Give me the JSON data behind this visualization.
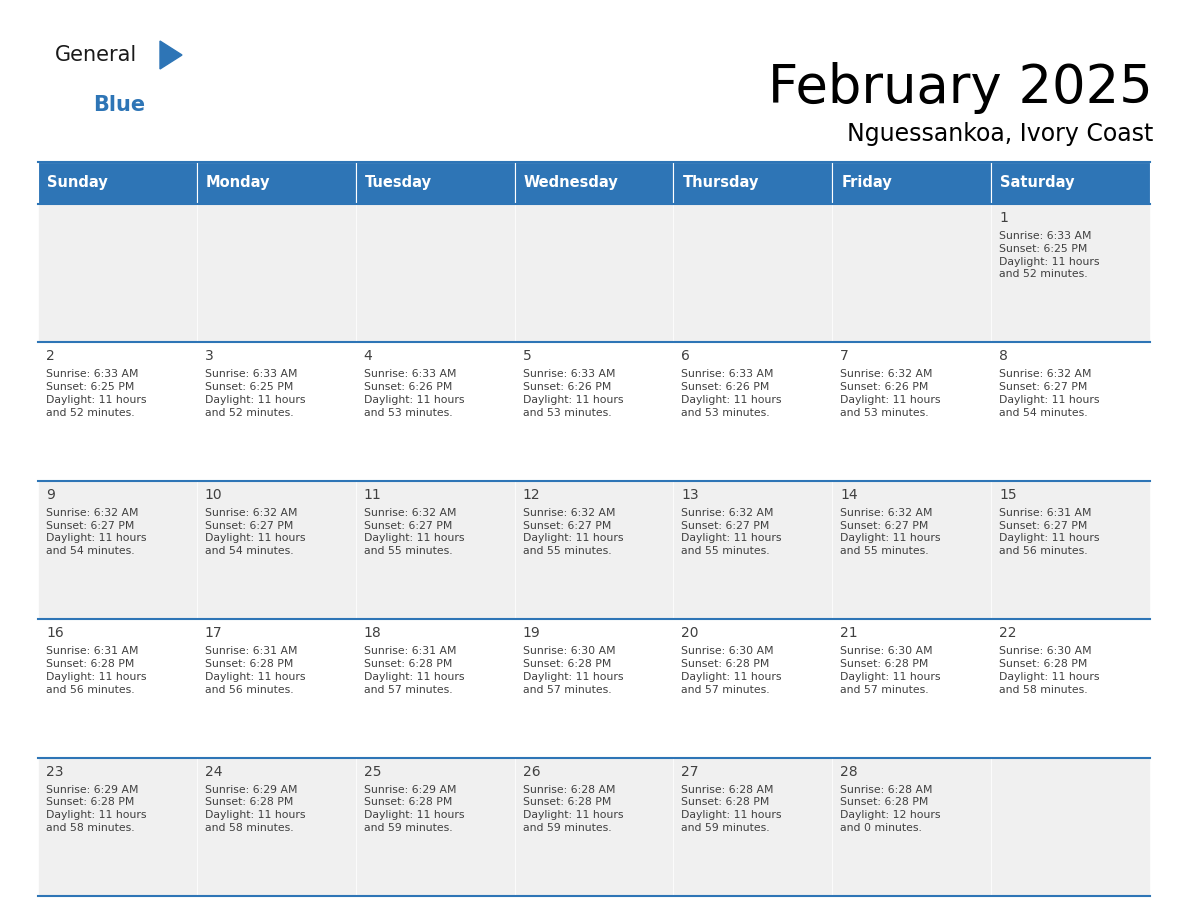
{
  "title": "February 2025",
  "subtitle": "Nguessankoa, Ivory Coast",
  "header_bg": "#2E75B6",
  "header_text_color": "#FFFFFF",
  "cell_bg_odd": "#F0F0F0",
  "cell_bg_even": "#FFFFFF",
  "border_color": "#2E75B6",
  "text_color": "#404040",
  "days_of_week": [
    "Sunday",
    "Monday",
    "Tuesday",
    "Wednesday",
    "Thursday",
    "Friday",
    "Saturday"
  ],
  "calendar": [
    [
      null,
      null,
      null,
      null,
      null,
      null,
      {
        "day": 1,
        "sunrise": "6:33 AM",
        "sunset": "6:25 PM",
        "daylight": "11 hours\nand 52 minutes."
      }
    ],
    [
      {
        "day": 2,
        "sunrise": "6:33 AM",
        "sunset": "6:25 PM",
        "daylight": "11 hours\nand 52 minutes."
      },
      {
        "day": 3,
        "sunrise": "6:33 AM",
        "sunset": "6:25 PM",
        "daylight": "11 hours\nand 52 minutes."
      },
      {
        "day": 4,
        "sunrise": "6:33 AM",
        "sunset": "6:26 PM",
        "daylight": "11 hours\nand 53 minutes."
      },
      {
        "day": 5,
        "sunrise": "6:33 AM",
        "sunset": "6:26 PM",
        "daylight": "11 hours\nand 53 minutes."
      },
      {
        "day": 6,
        "sunrise": "6:33 AM",
        "sunset": "6:26 PM",
        "daylight": "11 hours\nand 53 minutes."
      },
      {
        "day": 7,
        "sunrise": "6:32 AM",
        "sunset": "6:26 PM",
        "daylight": "11 hours\nand 53 minutes."
      },
      {
        "day": 8,
        "sunrise": "6:32 AM",
        "sunset": "6:27 PM",
        "daylight": "11 hours\nand 54 minutes."
      }
    ],
    [
      {
        "day": 9,
        "sunrise": "6:32 AM",
        "sunset": "6:27 PM",
        "daylight": "11 hours\nand 54 minutes."
      },
      {
        "day": 10,
        "sunrise": "6:32 AM",
        "sunset": "6:27 PM",
        "daylight": "11 hours\nand 54 minutes."
      },
      {
        "day": 11,
        "sunrise": "6:32 AM",
        "sunset": "6:27 PM",
        "daylight": "11 hours\nand 55 minutes."
      },
      {
        "day": 12,
        "sunrise": "6:32 AM",
        "sunset": "6:27 PM",
        "daylight": "11 hours\nand 55 minutes."
      },
      {
        "day": 13,
        "sunrise": "6:32 AM",
        "sunset": "6:27 PM",
        "daylight": "11 hours\nand 55 minutes."
      },
      {
        "day": 14,
        "sunrise": "6:32 AM",
        "sunset": "6:27 PM",
        "daylight": "11 hours\nand 55 minutes."
      },
      {
        "day": 15,
        "sunrise": "6:31 AM",
        "sunset": "6:27 PM",
        "daylight": "11 hours\nand 56 minutes."
      }
    ],
    [
      {
        "day": 16,
        "sunrise": "6:31 AM",
        "sunset": "6:28 PM",
        "daylight": "11 hours\nand 56 minutes."
      },
      {
        "day": 17,
        "sunrise": "6:31 AM",
        "sunset": "6:28 PM",
        "daylight": "11 hours\nand 56 minutes."
      },
      {
        "day": 18,
        "sunrise": "6:31 AM",
        "sunset": "6:28 PM",
        "daylight": "11 hours\nand 57 minutes."
      },
      {
        "day": 19,
        "sunrise": "6:30 AM",
        "sunset": "6:28 PM",
        "daylight": "11 hours\nand 57 minutes."
      },
      {
        "day": 20,
        "sunrise": "6:30 AM",
        "sunset": "6:28 PM",
        "daylight": "11 hours\nand 57 minutes."
      },
      {
        "day": 21,
        "sunrise": "6:30 AM",
        "sunset": "6:28 PM",
        "daylight": "11 hours\nand 57 minutes."
      },
      {
        "day": 22,
        "sunrise": "6:30 AM",
        "sunset": "6:28 PM",
        "daylight": "11 hours\nand 58 minutes."
      }
    ],
    [
      {
        "day": 23,
        "sunrise": "6:29 AM",
        "sunset": "6:28 PM",
        "daylight": "11 hours\nand 58 minutes."
      },
      {
        "day": 24,
        "sunrise": "6:29 AM",
        "sunset": "6:28 PM",
        "daylight": "11 hours\nand 58 minutes."
      },
      {
        "day": 25,
        "sunrise": "6:29 AM",
        "sunset": "6:28 PM",
        "daylight": "11 hours\nand 59 minutes."
      },
      {
        "day": 26,
        "sunrise": "6:28 AM",
        "sunset": "6:28 PM",
        "daylight": "11 hours\nand 59 minutes."
      },
      {
        "day": 27,
        "sunrise": "6:28 AM",
        "sunset": "6:28 PM",
        "daylight": "11 hours\nand 59 minutes."
      },
      {
        "day": 28,
        "sunrise": "6:28 AM",
        "sunset": "6:28 PM",
        "daylight": "12 hours\nand 0 minutes."
      },
      null
    ]
  ],
  "logo_general_color": "#1a1a1a",
  "logo_blue_color": "#2E75B6",
  "logo_triangle_color": "#2E75B6"
}
